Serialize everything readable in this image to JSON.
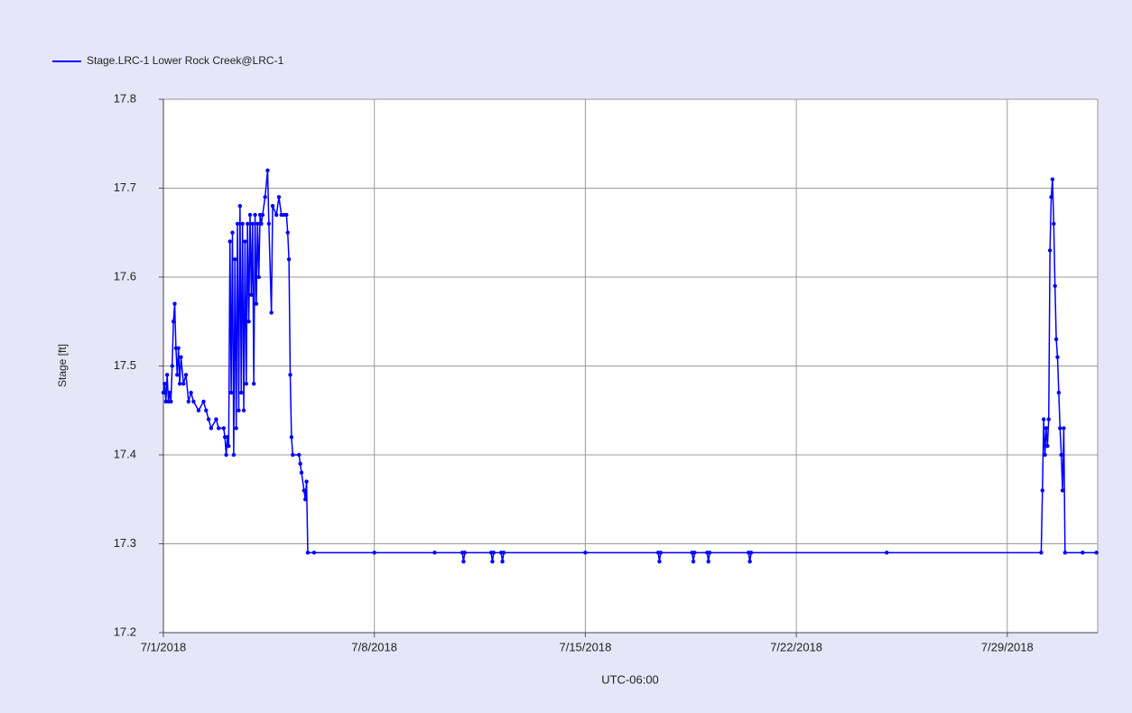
{
  "chart_data": {
    "type": "line",
    "xlabel": "UTC-06:00",
    "ylabel": "Stage [ft]",
    "legend": "top-left",
    "grid": true,
    "xlim": [
      "2018-07-01T00:00",
      "2018-08-01T00:00"
    ],
    "xticks": [
      {
        "value": "2018-07-01T00:00",
        "label": "7/1/2018"
      },
      {
        "value": "2018-07-08T00:00",
        "label": "7/8/2018"
      },
      {
        "value": "2018-07-15T00:00",
        "label": "7/15/2018"
      },
      {
        "value": "2018-07-22T00:00",
        "label": "7/22/2018"
      },
      {
        "value": "2018-07-29T00:00",
        "label": "7/29/2018"
      }
    ],
    "ylim": [
      17.2,
      17.8
    ],
    "yticks": [
      17.2,
      17.3,
      17.4,
      17.5,
      17.6,
      17.7,
      17.8
    ],
    "x": [
      "2018-07-01T00:00",
      "2018-07-01T01:00",
      "2018-07-01T02:00",
      "2018-07-01T03:00",
      "2018-07-01T04:00",
      "2018-07-01T05:00",
      "2018-07-01T06:00",
      "2018-07-01T07:00",
      "2018-07-01T08:00",
      "2018-07-01T09:00",
      "2018-07-01T10:00",
      "2018-07-01T11:00",
      "2018-07-01T12:00",
      "2018-07-01T13:00",
      "2018-07-01T14:00",
      "2018-07-01T16:00",
      "2018-07-01T18:00",
      "2018-07-01T20:00",
      "2018-07-01T22:00",
      "2018-07-02T00:00",
      "2018-07-02T04:00",
      "2018-07-02T08:00",
      "2018-07-02T10:00",
      "2018-07-02T12:00",
      "2018-07-02T14:00",
      "2018-07-02T18:00",
      "2018-07-02T20:00",
      "2018-07-03T00:00",
      "2018-07-03T01:00",
      "2018-07-03T02:00",
      "2018-07-03T03:00",
      "2018-07-03T04:00",
      "2018-07-03T05:00",
      "2018-07-03T06:00",
      "2018-07-03T07:00",
      "2018-07-03T08:00",
      "2018-07-03T09:00",
      "2018-07-03T10:00",
      "2018-07-03T11:00",
      "2018-07-03T12:00",
      "2018-07-03T13:00",
      "2018-07-03T14:00",
      "2018-07-03T15:00",
      "2018-07-03T16:00",
      "2018-07-03T17:00",
      "2018-07-03T18:00",
      "2018-07-03T19:00",
      "2018-07-03T20:00",
      "2018-07-03T21:00",
      "2018-07-03T22:00",
      "2018-07-03T23:00",
      "2018-07-04T00:00",
      "2018-07-04T01:00",
      "2018-07-04T02:00",
      "2018-07-04T03:00",
      "2018-07-04T04:00",
      "2018-07-04T05:00",
      "2018-07-04T06:00",
      "2018-07-04T07:00",
      "2018-07-04T09:00",
      "2018-07-04T11:00",
      "2018-07-04T12:00",
      "2018-07-04T14:00",
      "2018-07-04T15:00",
      "2018-07-04T18:00",
      "2018-07-04T20:00",
      "2018-07-04T22:00",
      "2018-07-05T00:00",
      "2018-07-05T02:00",
      "2018-07-05T03:00",
      "2018-07-05T04:00",
      "2018-07-05T05:00",
      "2018-07-05T06:00",
      "2018-07-05T07:00",
      "2018-07-05T12:00",
      "2018-07-05T13:00",
      "2018-07-05T14:00",
      "2018-07-05T16:00",
      "2018-07-05T17:00",
      "2018-07-05T18:00",
      "2018-07-05T19:00",
      "2018-07-06T00:00",
      "2018-07-08T00:00",
      "2018-07-10T00:00",
      "2018-07-10T22:00",
      "2018-07-10T23:00",
      "2018-07-11T00:00",
      "2018-07-11T21:00",
      "2018-07-11T22:00",
      "2018-07-11T23:00",
      "2018-07-12T05:00",
      "2018-07-12T06:00",
      "2018-07-12T07:00",
      "2018-07-15T00:00",
      "2018-07-17T10:00",
      "2018-07-17T11:00",
      "2018-07-17T12:00",
      "2018-07-18T13:00",
      "2018-07-18T14:00",
      "2018-07-18T15:00",
      "2018-07-19T01:00",
      "2018-07-19T02:00",
      "2018-07-19T03:00",
      "2018-07-20T10:00",
      "2018-07-20T11:00",
      "2018-07-20T12:00",
      "2018-07-25T00:00",
      "2018-07-30T03:00",
      "2018-07-30T04:00",
      "2018-07-30T05:00",
      "2018-07-30T06:00",
      "2018-07-30T07:00",
      "2018-07-30T08:00",
      "2018-07-30T09:00",
      "2018-07-30T10:00",
      "2018-07-30T11:00",
      "2018-07-30T12:00",
      "2018-07-30T13:00",
      "2018-07-30T14:00",
      "2018-07-30T15:00",
      "2018-07-30T16:00",
      "2018-07-30T17:00",
      "2018-07-30T18:00",
      "2018-07-30T19:00",
      "2018-07-30T20:00",
      "2018-07-30T21:00",
      "2018-07-30T22:00",
      "2018-07-31T12:00",
      "2018-07-31T23:00"
    ],
    "series": [
      {
        "name": "Stage.LRC-1 Lower Rock Creek@LRC-1",
        "color": "#0000ff",
        "values": [
          17.47,
          17.48,
          17.46,
          17.49,
          17.46,
          17.47,
          17.46,
          17.5,
          17.55,
          17.57,
          17.52,
          17.49,
          17.52,
          17.48,
          17.51,
          17.48,
          17.49,
          17.46,
          17.47,
          17.46,
          17.45,
          17.46,
          17.45,
          17.44,
          17.43,
          17.44,
          17.43,
          17.43,
          17.42,
          17.4,
          17.42,
          17.41,
          17.64,
          17.47,
          17.65,
          17.4,
          17.62,
          17.43,
          17.66,
          17.45,
          17.68,
          17.47,
          17.66,
          17.45,
          17.64,
          17.48,
          17.66,
          17.55,
          17.67,
          17.58,
          17.66,
          17.48,
          17.67,
          17.57,
          17.66,
          17.6,
          17.67,
          17.66,
          17.67,
          17.69,
          17.72,
          17.66,
          17.56,
          17.68,
          17.67,
          17.69,
          17.67,
          17.67,
          17.67,
          17.65,
          17.62,
          17.49,
          17.42,
          17.4,
          17.4,
          17.39,
          17.38,
          17.36,
          17.35,
          17.37,
          17.29,
          17.29,
          17.29,
          17.29,
          17.29,
          17.28,
          17.29,
          17.29,
          17.28,
          17.29,
          17.29,
          17.28,
          17.29,
          17.29,
          17.29,
          17.28,
          17.29,
          17.29,
          17.28,
          17.29,
          17.29,
          17.28,
          17.29,
          17.29,
          17.28,
          17.29,
          17.29,
          17.29,
          17.36,
          17.44,
          17.4,
          17.43,
          17.41,
          17.44,
          17.63,
          17.69,
          17.71,
          17.66,
          17.59,
          17.53,
          17.51,
          17.47,
          17.43,
          17.4,
          17.36,
          17.43,
          17.29,
          17.29,
          17.29
        ]
      }
    ]
  }
}
